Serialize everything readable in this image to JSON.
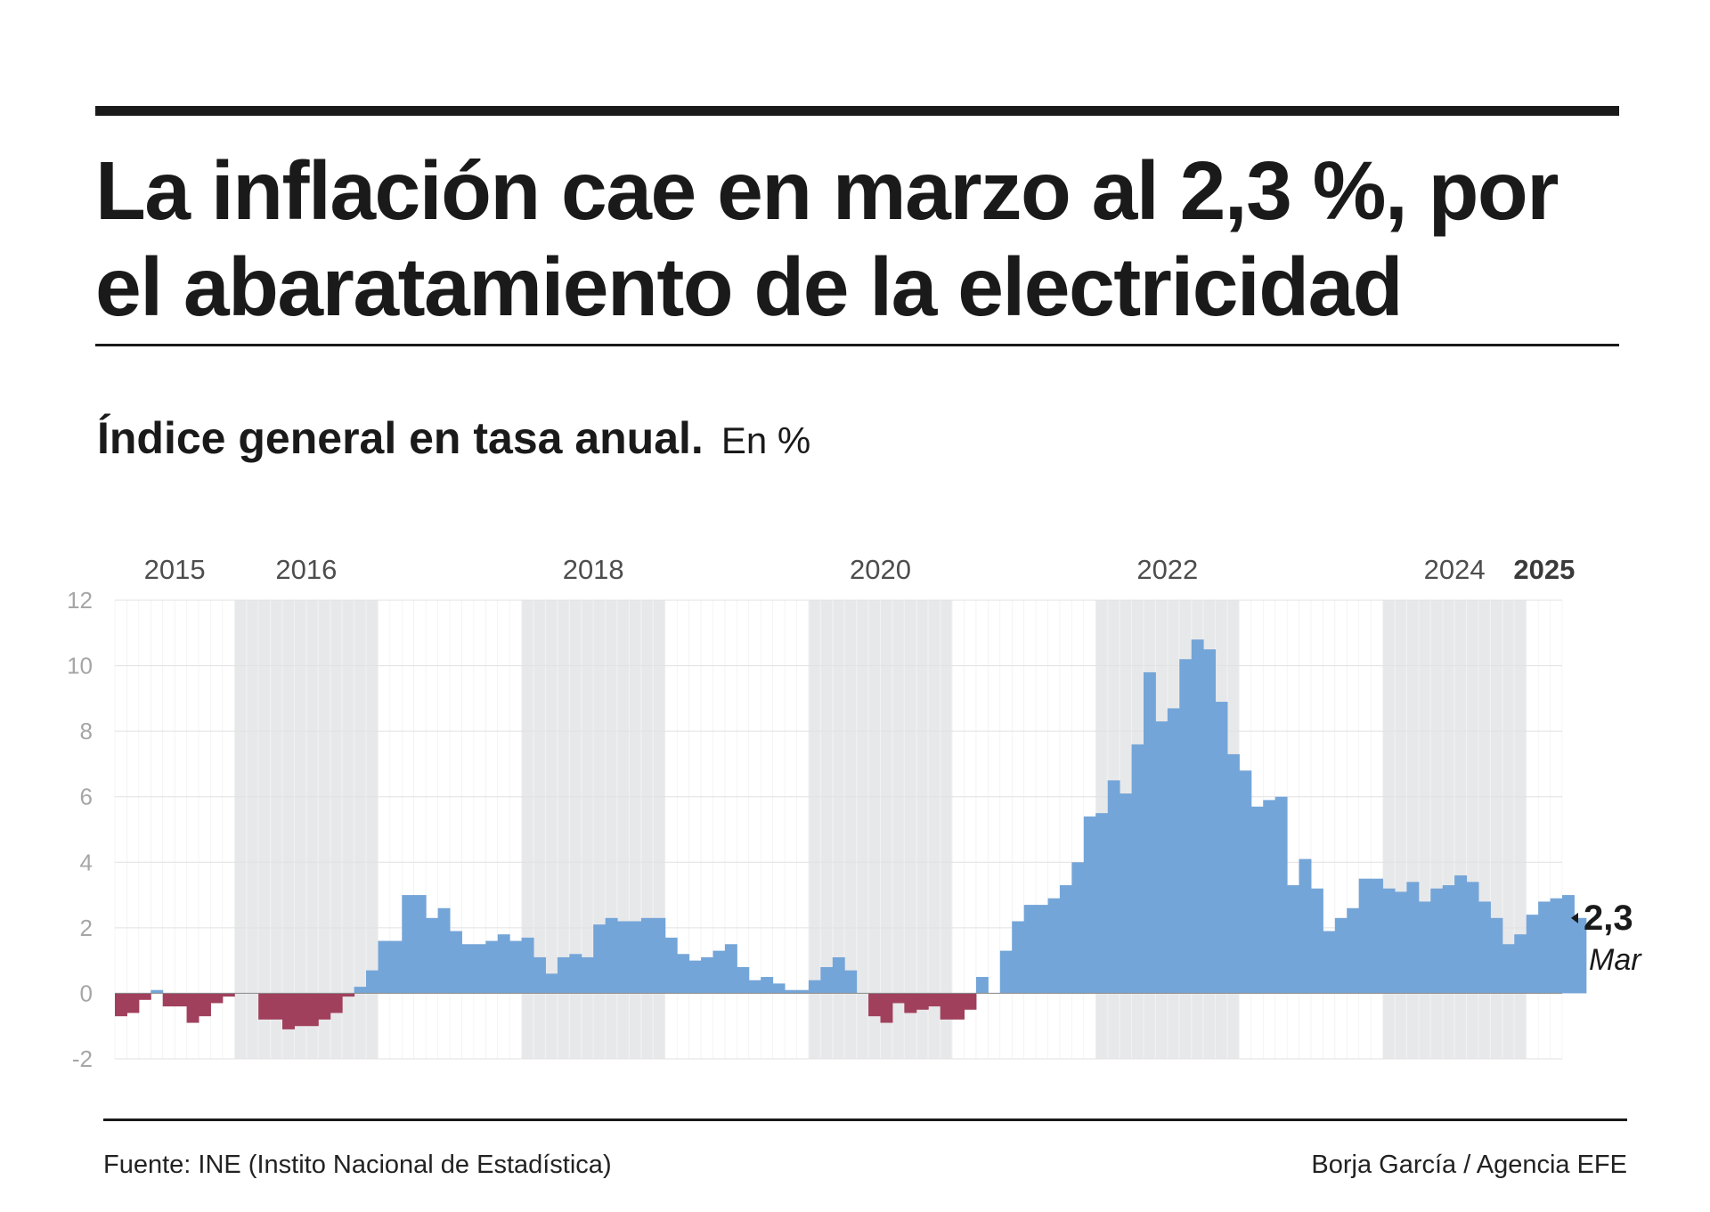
{
  "header": {
    "title_line1": "La inflación cae en marzo al 2,3 %, por",
    "title_line2": "el abaratamiento de la electricidad"
  },
  "subtitle": {
    "bold": "Índice general en tasa anual.",
    "unit": "En %"
  },
  "footer": {
    "source": "Fuente: INE (Instito Nacional de Estadística)",
    "credit": "Borja García / Agencia EFE"
  },
  "colors": {
    "positive": "#74a5d8",
    "negative": "#a0405c",
    "band": "#e7e8ea",
    "grid": "#e1e1e1",
    "tick": "#a6a6a6",
    "year": "#4d4d4d",
    "text": "#1a1a1a"
  },
  "chart_data": {
    "type": "bar",
    "title": "Índice general en tasa anual",
    "ylabel": "En %",
    "xlabel": "",
    "ylim": [
      -2,
      12
    ],
    "yticks": [
      "12",
      "10",
      "8",
      "6",
      "4",
      "2",
      "0",
      "-2"
    ],
    "start": "2015-03",
    "end": "2025-03",
    "year_labels": [
      {
        "label": "2015",
        "bold": false
      },
      {
        "label": "2016",
        "bold": false
      },
      {
        "label": "2018",
        "bold": false
      },
      {
        "label": "2020",
        "bold": false
      },
      {
        "label": "2022",
        "bold": false
      },
      {
        "label": "2024",
        "bold": false
      },
      {
        "label": "2025",
        "bold": true
      }
    ],
    "shaded_years": [
      "2016",
      "2018",
      "2020",
      "2022",
      "2024"
    ],
    "values": [
      -0.7,
      -0.6,
      -0.2,
      0.1,
      -0.4,
      -0.4,
      -0.9,
      -0.7,
      -0.3,
      -0.1,
      0.0,
      0.0,
      -0.8,
      -0.8,
      -1.1,
      -1.0,
      -1.0,
      -0.8,
      -0.6,
      -0.1,
      0.2,
      0.7,
      1.6,
      1.6,
      3.0,
      3.0,
      2.3,
      2.6,
      1.9,
      1.5,
      1.5,
      1.6,
      1.8,
      1.6,
      1.7,
      1.1,
      0.6,
      1.1,
      1.2,
      1.1,
      2.1,
      2.3,
      2.2,
      2.2,
      2.3,
      2.3,
      1.7,
      1.2,
      1.0,
      1.1,
      1.3,
      1.5,
      0.8,
      0.4,
      0.5,
      0.3,
      0.1,
      0.1,
      0.4,
      0.8,
      1.1,
      0.7,
      0.0,
      -0.7,
      -0.9,
      -0.3,
      -0.6,
      -0.5,
      -0.4,
      -0.8,
      -0.8,
      -0.5,
      0.5,
      0.0,
      1.3,
      2.2,
      2.7,
      2.7,
      2.9,
      3.3,
      4.0,
      5.4,
      5.5,
      6.5,
      6.1,
      7.6,
      9.8,
      8.3,
      8.7,
      10.2,
      10.8,
      10.5,
      8.9,
      7.3,
      6.8,
      5.7,
      5.9,
      6.0,
      3.3,
      4.1,
      3.2,
      1.9,
      2.3,
      2.6,
      3.5,
      3.5,
      3.2,
      3.1,
      3.4,
      2.8,
      3.2,
      3.3,
      3.6,
      3.4,
      2.8,
      2.3,
      1.5,
      1.8,
      2.4,
      2.8,
      2.9,
      3.0,
      2.3
    ],
    "last_value_label": "2,3",
    "last_month_label": "Mar"
  }
}
